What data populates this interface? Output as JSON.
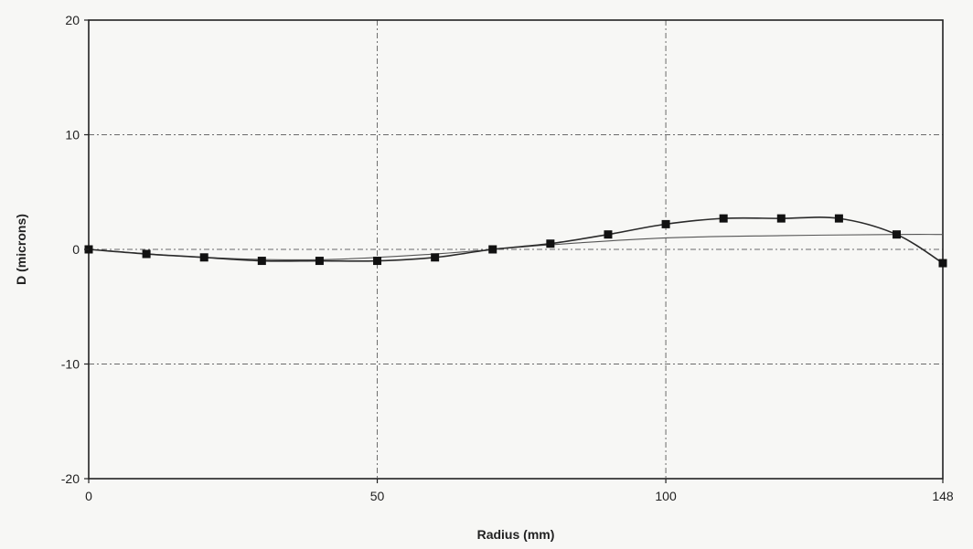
{
  "chart_data": {
    "type": "line",
    "title": "",
    "xlabel": "Radius (mm)",
    "ylabel": "D (microns)",
    "xlim": [
      0,
      148
    ],
    "ylim": [
      -20,
      20
    ],
    "x_ticks": [
      0,
      50,
      100,
      148
    ],
    "y_ticks": [
      -20,
      -10,
      0,
      10,
      20
    ],
    "x_tick_labels": [
      "0",
      "50",
      "100",
      "148"
    ],
    "y_tick_labels": [
      "-20",
      "-10",
      "0",
      "10",
      "20"
    ],
    "grid": true,
    "legend": "none",
    "series": [
      {
        "marker": "square",
        "x": [
          0,
          10,
          20,
          30,
          40,
          50,
          60,
          70,
          80,
          90,
          100,
          110,
          120,
          130,
          140,
          148
        ],
        "y": [
          0,
          -0.4,
          -0.7,
          -1.0,
          -1.0,
          -1.0,
          -0.7,
          0,
          0.5,
          1.3,
          2.2,
          2.7,
          2.7,
          2.7,
          1.3,
          -1.2
        ]
      },
      {
        "marker": "none",
        "x": [
          0,
          20,
          40,
          60,
          80,
          100,
          120,
          140,
          148
        ],
        "y": [
          0,
          -0.7,
          -0.9,
          -0.4,
          0.4,
          1.0,
          1.2,
          1.3,
          1.3
        ]
      }
    ]
  }
}
